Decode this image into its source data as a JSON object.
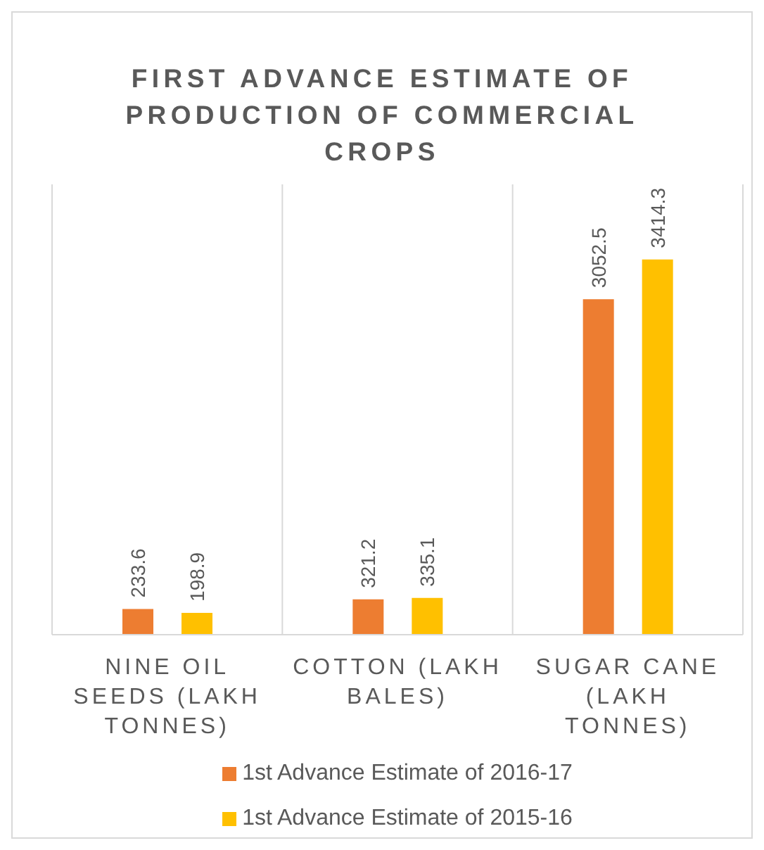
{
  "chart_data": {
    "type": "bar",
    "title": "FIRST ADVANCE ESTIMATE OF PRODUCTION OF COMMERCIAL CROPS",
    "categories": [
      "NINE OIL SEEDS (LAKH TONNES)",
      "COTTON (LAKH BALES)",
      "SUGAR CANE (LAKH TONNES)"
    ],
    "series": [
      {
        "name": "1st Advance Estimate of 2016-17",
        "color": "#ed7d31",
        "values": [
          233.6,
          321.2,
          3052.5
        ]
      },
      {
        "name": "1st Advance Estimate of 2015-16",
        "color": "#ffc000",
        "values": [
          198.9,
          335.1,
          3414.3
        ]
      }
    ],
    "data_labels": true,
    "grid": "x",
    "legend": "bottom"
  }
}
